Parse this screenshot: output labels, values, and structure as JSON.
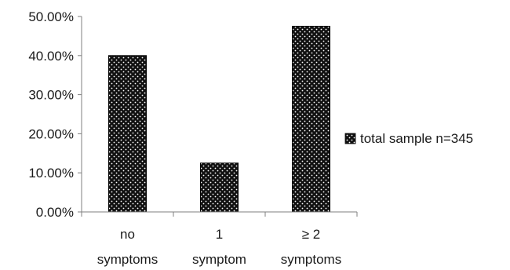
{
  "chart_data": {
    "type": "bar",
    "categories": [
      [
        "no",
        "symptoms"
      ],
      [
        "1",
        "symptom"
      ],
      [
        "≥ 2",
        "symptoms"
      ]
    ],
    "series": [
      {
        "name": "total sample n=345",
        "values": [
          40.0,
          12.5,
          47.5
        ]
      }
    ],
    "ylim": [
      0,
      50
    ],
    "yticks": [
      "0.00%",
      "10.00%",
      "20.00%",
      "30.00%",
      "40.00%",
      "50.00%"
    ],
    "grid": false,
    "legend": "right",
    "bar_pattern": "black dotted"
  }
}
